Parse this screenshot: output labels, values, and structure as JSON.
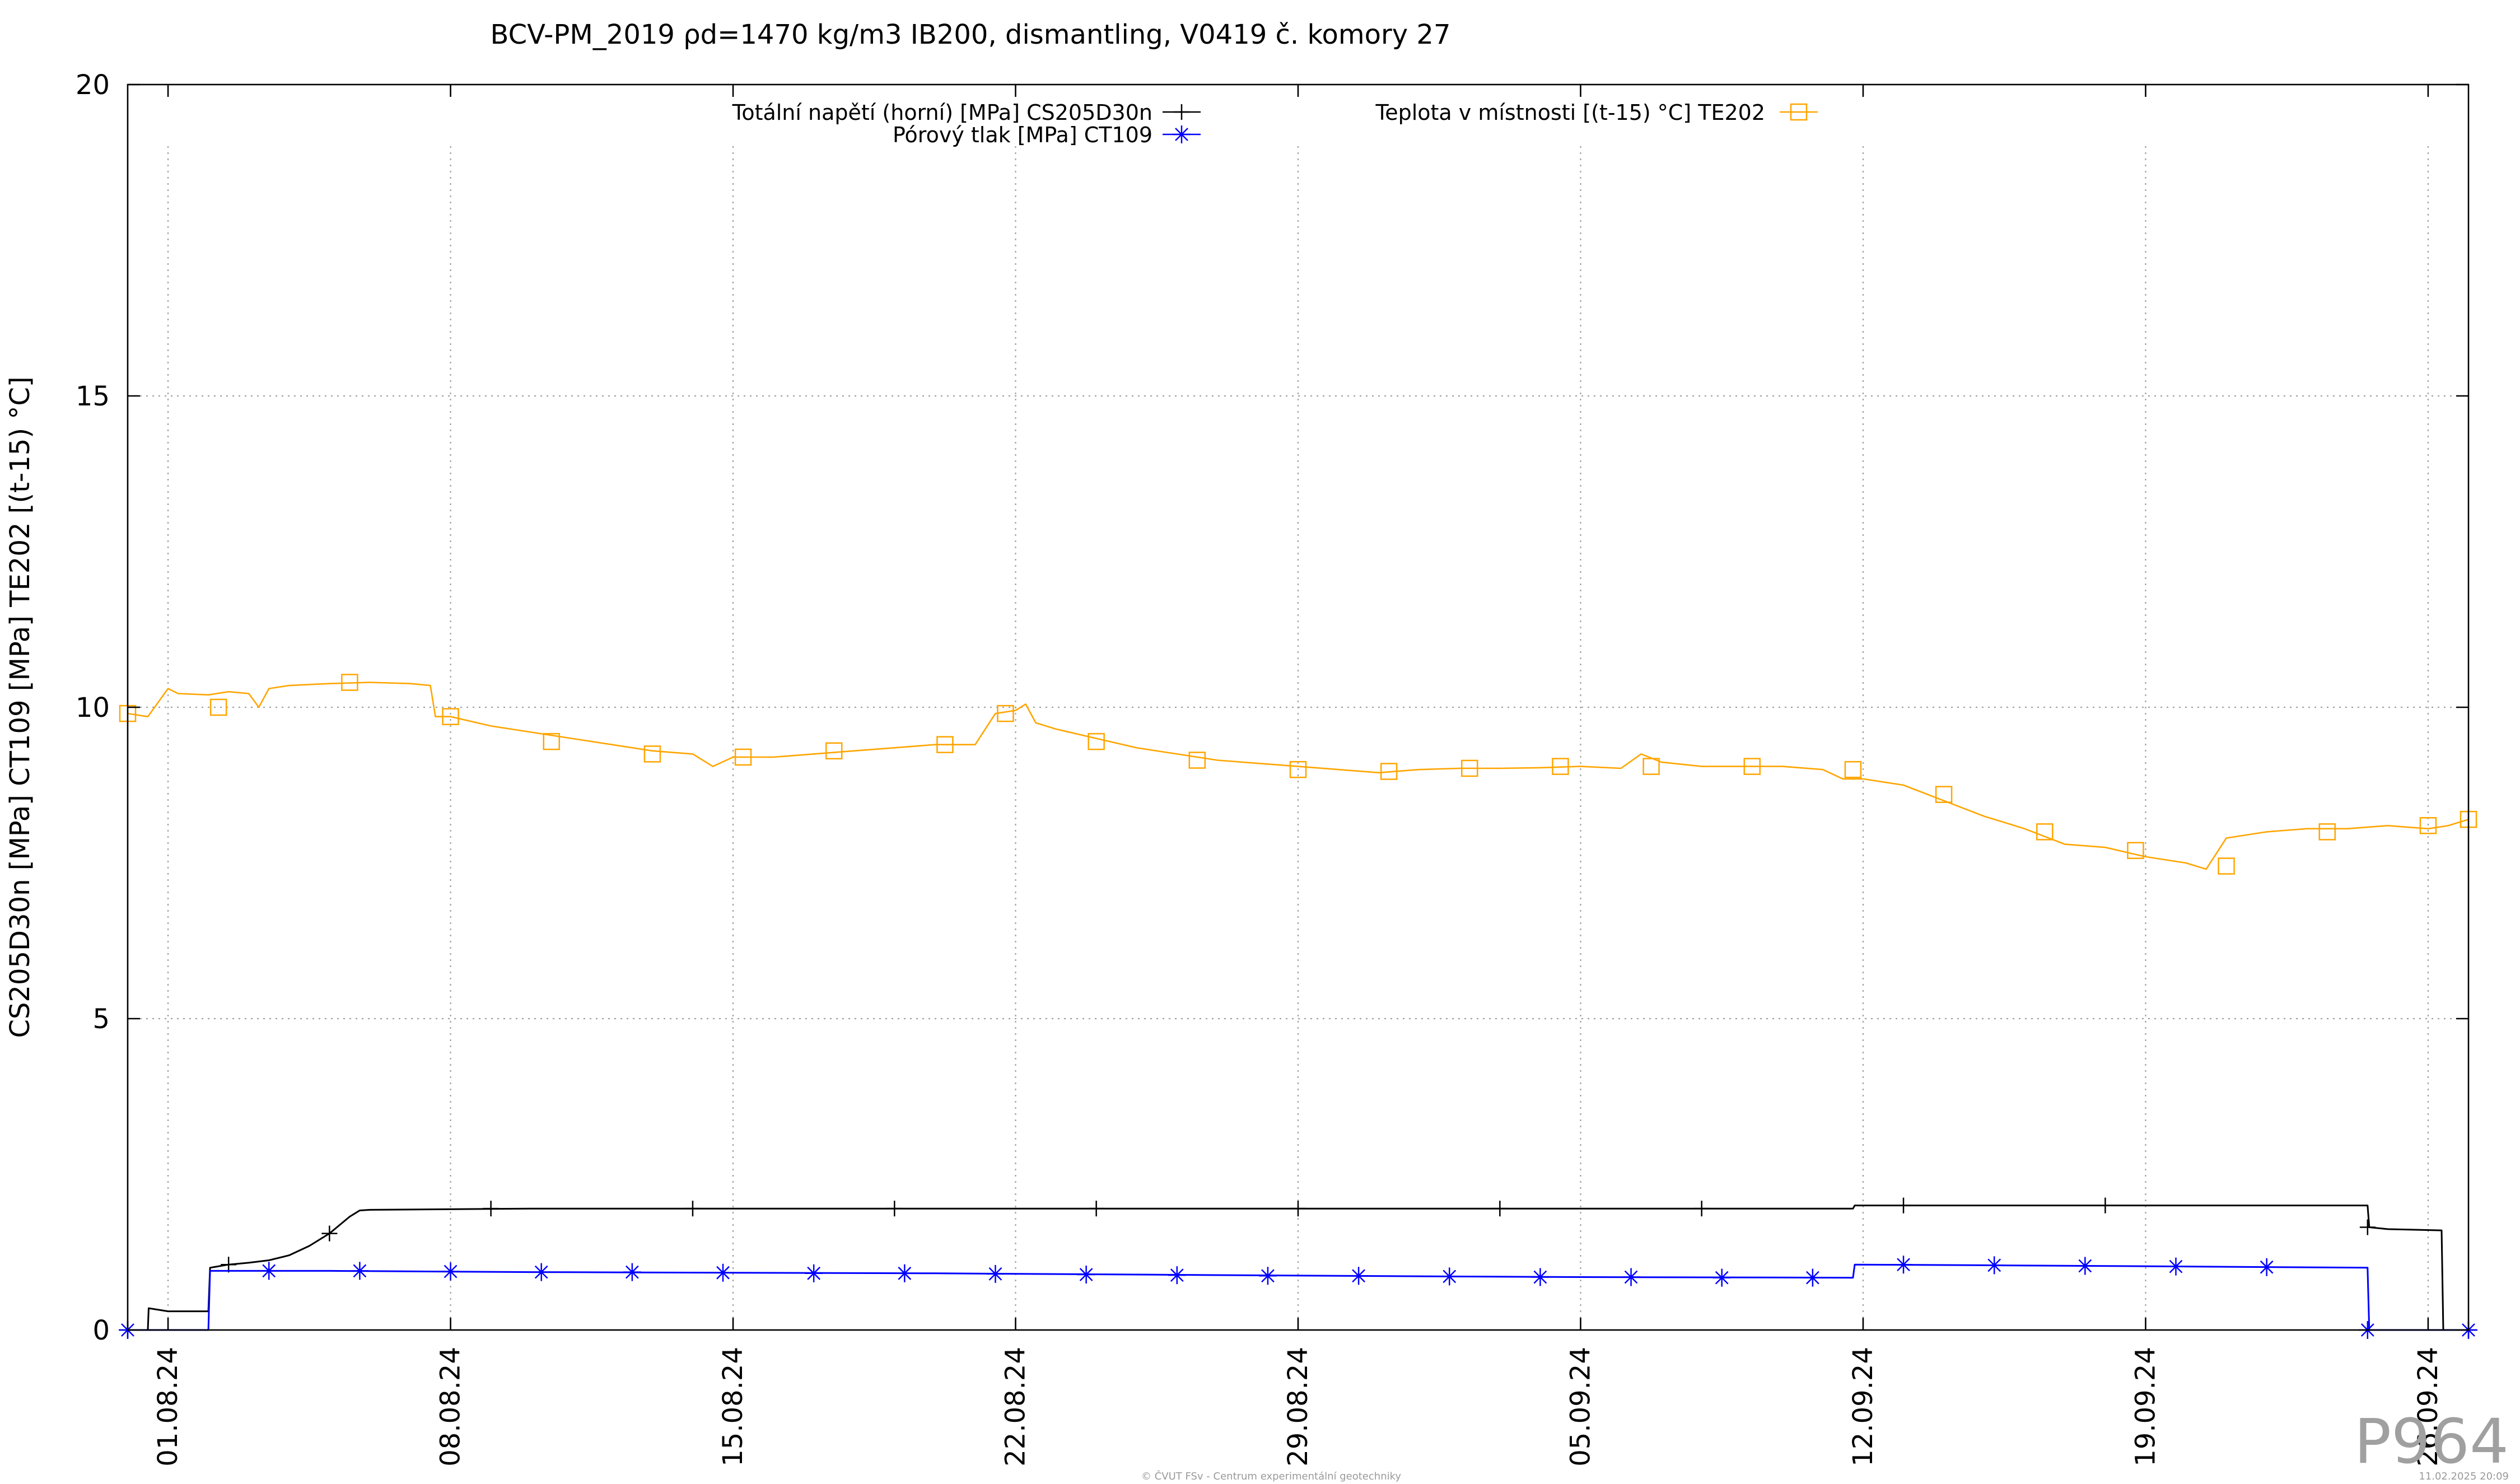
{
  "chart_data": {
    "type": "line",
    "title": "BCV-PM_2019 ρd=1470 kg/m3 IB200, dismantling, V0419 č. komory 27",
    "ylabel": "CS205D30n [MPa] CT109 [MPa] TE202 [(t-15) °C]",
    "xlabel": "",
    "ylim": [
      0,
      20
    ],
    "y_ticks": [
      "0",
      "5",
      "10",
      "15",
      "20"
    ],
    "y_tick_values": [
      0,
      5,
      10,
      15,
      20
    ],
    "xlim": [
      "2024-07-31",
      "2024-09-27"
    ],
    "x_ticks": [
      "01.08.24",
      "08.08.24",
      "15.08.24",
      "22.08.24",
      "29.08.24",
      "05.09.24",
      "12.09.24",
      "19.09.24",
      "26.09.24"
    ],
    "x_tick_dates": [
      "2024-08-01",
      "2024-08-08",
      "2024-08-15",
      "2024-08-22",
      "2024-08-29",
      "2024-09-05",
      "2024-09-12",
      "2024-09-19",
      "2024-09-26"
    ],
    "grid": true,
    "legend_position": "top-center",
    "series": [
      {
        "name": "Totální napětí (horní) [MPa] CS205D30n",
        "color": "#000000",
        "marker": "plus",
        "points": [
          [
            "2024-07-31",
            0.0
          ],
          [
            "2024-07-31 12:00",
            0.0
          ],
          [
            "2024-07-31 12:30",
            0.35
          ],
          [
            "2024-08-01",
            0.3
          ],
          [
            "2024-08-01 12:00",
            0.3
          ],
          [
            "2024-08-02",
            0.3
          ],
          [
            "2024-08-02 01:00",
            1.0
          ],
          [
            "2024-08-02 12:00",
            1.05
          ],
          [
            "2024-08-03",
            1.08
          ],
          [
            "2024-08-03 12:00",
            1.12
          ],
          [
            "2024-08-04",
            1.2
          ],
          [
            "2024-08-04 12:00",
            1.35
          ],
          [
            "2024-08-05",
            1.55
          ],
          [
            "2024-08-05 12:00",
            1.82
          ],
          [
            "2024-08-05 18:00",
            1.92
          ],
          [
            "2024-08-06",
            1.93
          ],
          [
            "2024-08-10",
            1.95
          ],
          [
            "2024-08-15",
            1.95
          ],
          [
            "2024-08-20",
            1.95
          ],
          [
            "2024-08-25",
            1.95
          ],
          [
            "2024-08-30",
            1.95
          ],
          [
            "2024-09-05",
            1.95
          ],
          [
            "2024-09-11",
            1.95
          ],
          [
            "2024-09-11 18:00",
            1.95
          ],
          [
            "2024-09-11 19:00",
            2.0
          ],
          [
            "2024-09-15",
            2.0
          ],
          [
            "2024-09-20",
            2.0
          ],
          [
            "2024-09-24 12:00",
            2.0
          ],
          [
            "2024-09-24 13:00",
            1.65
          ],
          [
            "2024-09-25",
            1.62
          ],
          [
            "2024-09-26 08:00",
            1.6
          ],
          [
            "2024-09-26 09:00",
            0.0
          ],
          [
            "2024-09-27",
            0.0
          ]
        ],
        "marker_points": [
          [
            "2024-07-31",
            0.0
          ],
          [
            "2024-08-02 12:00",
            1.05
          ],
          [
            "2024-08-05",
            1.55
          ],
          [
            "2024-08-09",
            1.95
          ],
          [
            "2024-08-14",
            1.95
          ],
          [
            "2024-08-19",
            1.95
          ],
          [
            "2024-08-24",
            1.95
          ],
          [
            "2024-08-29",
            1.95
          ],
          [
            "2024-09-03",
            1.95
          ],
          [
            "2024-09-08",
            1.95
          ],
          [
            "2024-09-13",
            2.0
          ],
          [
            "2024-09-18",
            2.0
          ],
          [
            "2024-09-24 12:00",
            1.65
          ],
          [
            "2024-09-27",
            0.0
          ]
        ]
      },
      {
        "name": "Pórový tlak [MPa] CT109",
        "color": "#0000ff",
        "marker": "star",
        "points": [
          [
            "2024-07-31",
            0.0
          ],
          [
            "2024-08-02",
            0.0
          ],
          [
            "2024-08-02 01:00",
            0.95
          ],
          [
            "2024-08-05",
            0.95
          ],
          [
            "2024-08-10",
            0.93
          ],
          [
            "2024-08-15",
            0.92
          ],
          [
            "2024-08-20",
            0.91
          ],
          [
            "2024-08-25",
            0.89
          ],
          [
            "2024-08-30",
            0.87
          ],
          [
            "2024-09-05",
            0.85
          ],
          [
            "2024-09-11 18:00",
            0.84
          ],
          [
            "2024-09-11 19:00",
            1.05
          ],
          [
            "2024-09-15",
            1.04
          ],
          [
            "2024-09-20",
            1.02
          ],
          [
            "2024-09-24 12:00",
            1.0
          ],
          [
            "2024-09-24 13:00",
            0.0
          ],
          [
            "2024-09-27",
            0.0
          ]
        ],
        "marker_points": [
          [
            "2024-07-31",
            0.0
          ],
          [
            "2024-08-03 12:00",
            0.95
          ],
          [
            "2024-08-05 18:00",
            0.95
          ],
          [
            "2024-08-08",
            0.94
          ],
          [
            "2024-08-10 06:00",
            0.93
          ],
          [
            "2024-08-12 12:00",
            0.93
          ],
          [
            "2024-08-14 18:00",
            0.92
          ],
          [
            "2024-08-17",
            0.91
          ],
          [
            "2024-08-19 06:00",
            0.91
          ],
          [
            "2024-08-21 12:00",
            0.9
          ],
          [
            "2024-08-23 18:00",
            0.89
          ],
          [
            "2024-08-26",
            0.88
          ],
          [
            "2024-08-28 06:00",
            0.87
          ],
          [
            "2024-08-30 12:00",
            0.87
          ],
          [
            "2024-09-01 18:00",
            0.86
          ],
          [
            "2024-09-04",
            0.85
          ],
          [
            "2024-09-06 06:00",
            0.85
          ],
          [
            "2024-09-08 12:00",
            0.84
          ],
          [
            "2024-09-10 18:00",
            0.84
          ],
          [
            "2024-09-13",
            1.05
          ],
          [
            "2024-09-15 06:00",
            1.04
          ],
          [
            "2024-09-17 12:00",
            1.03
          ],
          [
            "2024-09-19 18:00",
            1.02
          ],
          [
            "2024-09-22",
            1.01
          ],
          [
            "2024-09-24 12:00",
            0.0
          ],
          [
            "2024-09-27",
            0.0
          ]
        ]
      },
      {
        "name": "Teplota v místnosti [(t-15) °C] TE202",
        "color": "#ffa500",
        "marker": "square",
        "points": [
          [
            "2024-07-31",
            9.9
          ],
          [
            "2024-07-31 12:00",
            9.85
          ],
          [
            "2024-08-01",
            10.3
          ],
          [
            "2024-08-01 06:00",
            10.22
          ],
          [
            "2024-08-02",
            10.2
          ],
          [
            "2024-08-02 12:00",
            10.25
          ],
          [
            "2024-08-03",
            10.22
          ],
          [
            "2024-08-03 06:00",
            10.0
          ],
          [
            "2024-08-03 12:00",
            10.3
          ],
          [
            "2024-08-04",
            10.35
          ],
          [
            "2024-08-05",
            10.38
          ],
          [
            "2024-08-06",
            10.4
          ],
          [
            "2024-08-07",
            10.38
          ],
          [
            "2024-08-07 12:00",
            10.35
          ],
          [
            "2024-08-07 15:00",
            9.85
          ],
          [
            "2024-08-08",
            9.85
          ],
          [
            "2024-08-09",
            9.7
          ],
          [
            "2024-08-10",
            9.6
          ],
          [
            "2024-08-11",
            9.5
          ],
          [
            "2024-08-12",
            9.4
          ],
          [
            "2024-08-13",
            9.3
          ],
          [
            "2024-08-14",
            9.25
          ],
          [
            "2024-08-14 12:00",
            9.05
          ],
          [
            "2024-08-15",
            9.2
          ],
          [
            "2024-08-16",
            9.2
          ],
          [
            "2024-08-17",
            9.25
          ],
          [
            "2024-08-18",
            9.3
          ],
          [
            "2024-08-19",
            9.35
          ],
          [
            "2024-08-20",
            9.4
          ],
          [
            "2024-08-21",
            9.4
          ],
          [
            "2024-08-21 12:00",
            9.9
          ],
          [
            "2024-08-22",
            9.95
          ],
          [
            "2024-08-22 06:00",
            10.05
          ],
          [
            "2024-08-22 12:00",
            9.75
          ],
          [
            "2024-08-23",
            9.65
          ],
          [
            "2024-08-24",
            9.5
          ],
          [
            "2024-08-25",
            9.35
          ],
          [
            "2024-08-26",
            9.25
          ],
          [
            "2024-08-27",
            9.15
          ],
          [
            "2024-08-28",
            9.1
          ],
          [
            "2024-08-29",
            9.05
          ],
          [
            "2024-08-30",
            9.0
          ],
          [
            "2024-08-31",
            8.95
          ],
          [
            "2024-09-01",
            9.0
          ],
          [
            "2024-09-02",
            9.02
          ],
          [
            "2024-09-03",
            9.02
          ],
          [
            "2024-09-04",
            9.03
          ],
          [
            "2024-09-05",
            9.05
          ],
          [
            "2024-09-06",
            9.02
          ],
          [
            "2024-09-06 12:00",
            9.25
          ],
          [
            "2024-09-07",
            9.12
          ],
          [
            "2024-09-08",
            9.05
          ],
          [
            "2024-09-09",
            9.05
          ],
          [
            "2024-09-10",
            9.05
          ],
          [
            "2024-09-11",
            9.0
          ],
          [
            "2024-09-11 12:00",
            8.85
          ],
          [
            "2024-09-12",
            8.85
          ],
          [
            "2024-09-13",
            8.75
          ],
          [
            "2024-09-14",
            8.5
          ],
          [
            "2024-09-15",
            8.25
          ],
          [
            "2024-09-16",
            8.05
          ],
          [
            "2024-09-17",
            7.8
          ],
          [
            "2024-09-18",
            7.75
          ],
          [
            "2024-09-19",
            7.6
          ],
          [
            "2024-09-20",
            7.5
          ],
          [
            "2024-09-20 12:00",
            7.4
          ],
          [
            "2024-09-21",
            7.9
          ],
          [
            "2024-09-21 12:00",
            7.95
          ],
          [
            "2024-09-22",
            8.0
          ],
          [
            "2024-09-23",
            8.05
          ],
          [
            "2024-09-24",
            8.05
          ],
          [
            "2024-09-25",
            8.1
          ],
          [
            "2024-09-26",
            8.05
          ],
          [
            "2024-09-26 12:00",
            8.1
          ],
          [
            "2024-09-27",
            8.2
          ]
        ],
        "marker_points": [
          [
            "2024-07-31",
            9.9
          ],
          [
            "2024-08-02 06:00",
            10.0
          ],
          [
            "2024-08-05 12:00",
            10.4
          ],
          [
            "2024-08-08",
            9.85
          ],
          [
            "2024-08-10 12:00",
            9.45
          ],
          [
            "2024-08-13",
            9.25
          ],
          [
            "2024-08-15 06:00",
            9.2
          ],
          [
            "2024-08-17 12:00",
            9.3
          ],
          [
            "2024-08-20 06:00",
            9.4
          ],
          [
            "2024-08-21 18:00",
            9.9
          ],
          [
            "2024-08-24",
            9.45
          ],
          [
            "2024-08-26 12:00",
            9.15
          ],
          [
            "2024-08-29",
            9.0
          ],
          [
            "2024-08-31 06:00",
            8.97
          ],
          [
            "2024-09-02 06:00",
            9.02
          ],
          [
            "2024-09-04 12:00",
            9.05
          ],
          [
            "2024-09-06 18:00",
            9.05
          ],
          [
            "2024-09-09 06:00",
            9.05
          ],
          [
            "2024-09-11 18:00",
            9.0
          ],
          [
            "2024-09-14",
            8.6
          ],
          [
            "2024-09-16 12:00",
            8.0
          ],
          [
            "2024-09-18 18:00",
            7.7
          ],
          [
            "2024-09-21",
            7.45
          ],
          [
            "2024-09-23 12:00",
            8.0
          ],
          [
            "2024-09-26",
            8.1
          ],
          [
            "2024-09-27",
            8.2
          ]
        ]
      }
    ],
    "watermark": "P964",
    "footer_center": "© ČVUT FSv - Centrum experimentální geotechniky",
    "footer_right": "11.02.2025 20:09"
  }
}
